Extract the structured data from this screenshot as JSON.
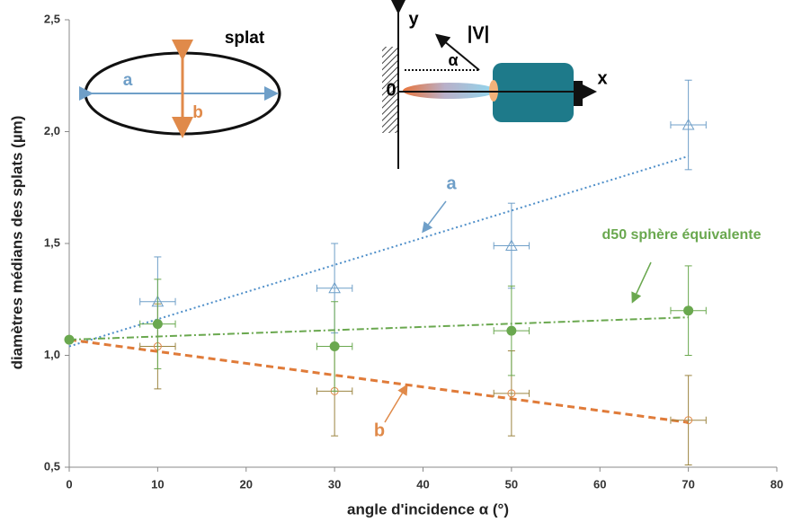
{
  "chart_data": {
    "type": "scatter",
    "xlabel": "angle d'incidence α (°)",
    "ylabel": "diamètres médians des splats (µm)",
    "xlim": [
      0,
      80
    ],
    "xticks": [
      0,
      10,
      20,
      30,
      40,
      50,
      60,
      70,
      80
    ],
    "ylim": [
      0.5,
      2.5
    ],
    "yticks": [
      {
        "value": 0.5,
        "label": "0,5"
      },
      {
        "value": 1.0,
        "label": "1,0"
      },
      {
        "value": 1.5,
        "label": "1,5"
      },
      {
        "value": 2.0,
        "label": "2,0"
      },
      {
        "value": 2.5,
        "label": "2,5"
      }
    ],
    "series": [
      {
        "name": "a",
        "color": "#6f9fc8",
        "marker": "triangle",
        "error_color": "#6f9fc8",
        "x": [
          10,
          30,
          50,
          70
        ],
        "values": [
          1.24,
          1.3,
          1.49,
          2.03
        ],
        "errors": [
          0.2,
          0.2,
          0.19,
          0.2
        ],
        "xerr": [
          2,
          2,
          2,
          2
        ],
        "trend": {
          "color": "#4f8fc9",
          "dash": "2,3",
          "x": [
            0,
            70
          ],
          "values": [
            1.04,
            1.89
          ]
        }
      },
      {
        "name": "b",
        "color": "#e08a4a",
        "marker": "open-circle",
        "error_color": "#9b8440",
        "x": [
          10,
          30,
          50,
          70
        ],
        "values": [
          1.04,
          0.84,
          0.83,
          0.71
        ],
        "errors": [
          0.19,
          0.2,
          0.19,
          0.2
        ],
        "xerr": [
          2,
          2,
          2,
          2
        ],
        "trend": {
          "color": "#e07b39",
          "dash": "8,5",
          "x": [
            0,
            70
          ],
          "values": [
            1.07,
            0.7
          ]
        }
      },
      {
        "name": "d50 sphère équivalente",
        "color": "#6aa84f",
        "marker": "circle",
        "error_color": "#6aa84f",
        "x": [
          0,
          10,
          30,
          50,
          70
        ],
        "values": [
          1.07,
          1.14,
          1.04,
          1.11,
          1.2
        ],
        "errors": [
          null,
          0.2,
          0.2,
          0.2,
          0.2
        ],
        "xerr": [
          null,
          2,
          2,
          2,
          2
        ],
        "trend": {
          "color": "#6aa84f",
          "dash": "8,3,2,3",
          "x": [
            0,
            70
          ],
          "values": [
            1.07,
            1.17
          ]
        }
      }
    ],
    "annotations": [
      "splat",
      "a",
      "b",
      "y",
      "|V|",
      "α",
      "0",
      "x"
    ]
  }
}
